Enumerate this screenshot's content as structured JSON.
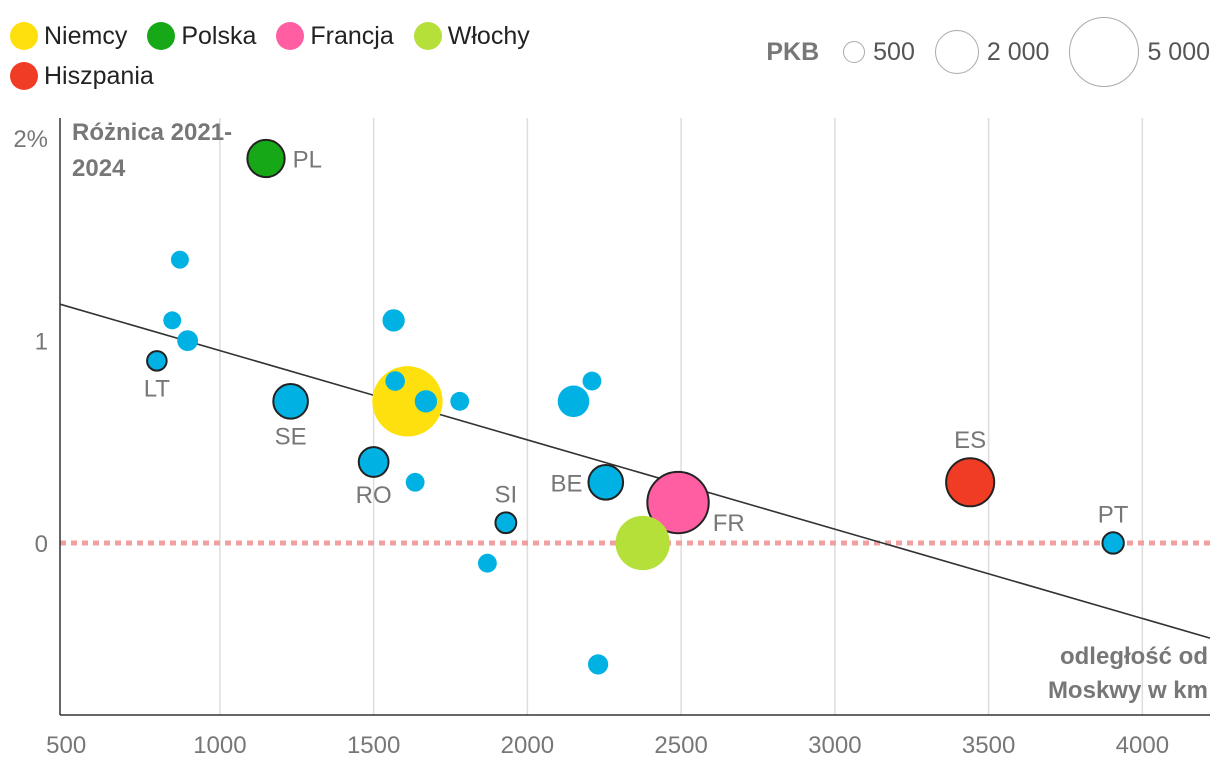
{
  "legend": {
    "items": [
      {
        "label": "Niemcy",
        "color": "#ffe00f"
      },
      {
        "label": "Polska",
        "color": "#16a816"
      },
      {
        "label": "Francja",
        "color": "#ff5fa2"
      },
      {
        "label": "Włochy",
        "color": "#b5e03a"
      },
      {
        "label": "Hiszpania",
        "color": "#f03c24"
      }
    ]
  },
  "size_legend": {
    "title": "PKB",
    "items": [
      {
        "label": "500",
        "value": 500
      },
      {
        "label": "2 000",
        "value": 2000
      },
      {
        "label": "5 000",
        "value": 5000
      }
    ]
  },
  "chart_data": {
    "type": "scatter",
    "title": "",
    "ylabel": "Różnica 2021-2024",
    "ylabel_lines": [
      "Różnica 2021-",
      "2024"
    ],
    "xlabel": "odległość od Moskwy w km",
    "xlabel_lines": [
      "odległość od",
      "Moskwy w km"
    ],
    "xlim": [
      480,
      4220
    ],
    "ylim": [
      -0.85,
      2.1
    ],
    "x_ticks": [
      {
        "value": 500,
        "label": "500"
      },
      {
        "value": 1000,
        "label": "1000"
      },
      {
        "value": 1500,
        "label": "1500"
      },
      {
        "value": 2000,
        "label": "2000"
      },
      {
        "value": 2500,
        "label": "2500"
      },
      {
        "value": 3000,
        "label": "3000"
      },
      {
        "value": 3500,
        "label": "3500"
      },
      {
        "value": 4000,
        "label": "4000"
      }
    ],
    "y_ticks": [
      {
        "value": 2,
        "label": "2%"
      },
      {
        "value": 1,
        "label": "1"
      },
      {
        "value": 0,
        "label": "0"
      }
    ],
    "grid": true,
    "trend_line": {
      "x": [
        480,
        4220
      ],
      "y": [
        1.18,
        -0.47
      ],
      "color": "#333333"
    },
    "reference_line": {
      "y": 0,
      "color": "#f0a0a0"
    },
    "other_color": "#00b2e3",
    "points": [
      {
        "x": 1150,
        "y": 1.9,
        "gdp": 700,
        "color": "#16a816",
        "outline": true,
        "label": "PL",
        "label_pos": "right"
      },
      {
        "x": 870,
        "y": 1.4,
        "gdp": 20,
        "color": "#00b2e3",
        "outline": false,
        "label": ""
      },
      {
        "x": 845,
        "y": 1.1,
        "gdp": 20,
        "color": "#00b2e3",
        "outline": false,
        "label": ""
      },
      {
        "x": 895,
        "y": 1.0,
        "gdp": 60,
        "color": "#00b2e3",
        "outline": false,
        "label": ""
      },
      {
        "x": 795,
        "y": 0.9,
        "gdp": 40,
        "color": "#00b2e3",
        "outline": true,
        "label": "LT",
        "label_pos": "below"
      },
      {
        "x": 1230,
        "y": 0.7,
        "gdp": 550,
        "color": "#00b2e3",
        "outline": true,
        "label": "SE",
        "label_pos": "below"
      },
      {
        "x": 1565,
        "y": 1.1,
        "gdp": 90,
        "color": "#00b2e3",
        "outline": false,
        "label": ""
      },
      {
        "x": 1570,
        "y": 0.8,
        "gdp": 40,
        "color": "#00b2e3",
        "outline": false,
        "label": ""
      },
      {
        "x": 1610,
        "y": 0.7,
        "gdp": 4100,
        "color": "#ffe00f",
        "outline": false,
        "label": ""
      },
      {
        "x": 1670,
        "y": 0.7,
        "gdp": 90,
        "color": "#00b2e3",
        "outline": false,
        "label": ""
      },
      {
        "x": 1780,
        "y": 0.7,
        "gdp": 30,
        "color": "#00b2e3",
        "outline": false,
        "label": ""
      },
      {
        "x": 1500,
        "y": 0.4,
        "gdp": 320,
        "color": "#00b2e3",
        "outline": true,
        "label": "RO",
        "label_pos": "below"
      },
      {
        "x": 1635,
        "y": 0.3,
        "gdp": 30,
        "color": "#00b2e3",
        "outline": false,
        "label": ""
      },
      {
        "x": 1930,
        "y": 0.1,
        "gdp": 60,
        "color": "#00b2e3",
        "outline": true,
        "label": "SI",
        "label_pos": "above"
      },
      {
        "x": 1870,
        "y": -0.1,
        "gdp": 30,
        "color": "#00b2e3",
        "outline": false,
        "label": ""
      },
      {
        "x": 2150,
        "y": 0.7,
        "gdp": 400,
        "color": "#00b2e3",
        "outline": false,
        "label": ""
      },
      {
        "x": 2210,
        "y": 0.8,
        "gdp": 30,
        "color": "#00b2e3",
        "outline": false,
        "label": ""
      },
      {
        "x": 2255,
        "y": 0.3,
        "gdp": 550,
        "color": "#00b2e3",
        "outline": true,
        "label": "BE",
        "label_pos": "left"
      },
      {
        "x": 2230,
        "y": -0.6,
        "gdp": 50,
        "color": "#00b2e3",
        "outline": false,
        "label": ""
      },
      {
        "x": 2375,
        "y": 0.0,
        "gdp": 2100,
        "color": "#b5e03a",
        "outline": false,
        "label": ""
      },
      {
        "x": 2490,
        "y": 0.2,
        "gdp": 2900,
        "color": "#ff5fa2",
        "outline": true,
        "label": "FR",
        "label_pos": "right-below"
      },
      {
        "x": 3440,
        "y": 0.3,
        "gdp": 1500,
        "color": "#f03c24",
        "outline": true,
        "label": "ES",
        "label_pos": "above"
      },
      {
        "x": 3905,
        "y": 0.0,
        "gdp": 70,
        "color": "#00b2e3",
        "outline": true,
        "label": "PT",
        "label_pos": "above"
      }
    ]
  }
}
